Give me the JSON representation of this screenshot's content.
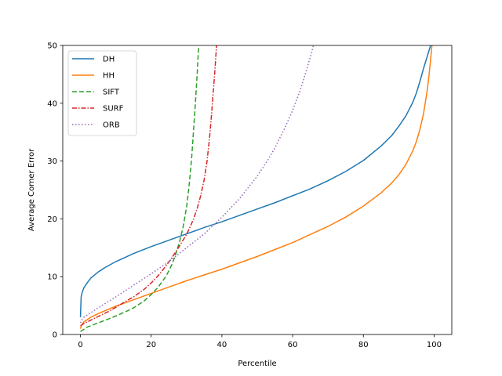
{
  "chart_data": {
    "type": "line",
    "title": "",
    "xlabel": "Percentile",
    "ylabel": "Average Corner Error",
    "xlim": [
      -5,
      105
    ],
    "ylim": [
      0,
      50
    ],
    "xticks": [
      0,
      20,
      40,
      60,
      80,
      100
    ],
    "yticks": [
      0,
      10,
      20,
      30,
      40,
      50
    ],
    "grid": false,
    "legend_position": "top-left",
    "series": [
      {
        "name": "DH",
        "color": "#1f77b4",
        "dash": "solid",
        "x": [
          0,
          0.2,
          0.5,
          1,
          2,
          3,
          5,
          7,
          10,
          15,
          20,
          25,
          30,
          35,
          40,
          45,
          50,
          55,
          60,
          65,
          70,
          75,
          80,
          85,
          88,
          90,
          92,
          94,
          95,
          96,
          97,
          98,
          98.5,
          99,
          99.3,
          99.6
        ],
        "y": [
          3,
          6.5,
          7.3,
          8.1,
          9.0,
          9.8,
          10.8,
          11.6,
          12.6,
          14.0,
          15.2,
          16.3,
          17.4,
          18.5,
          19.5,
          20.6,
          21.7,
          22.8,
          24.0,
          25.2,
          26.6,
          28.2,
          30.1,
          32.6,
          34.4,
          36.0,
          37.8,
          40.2,
          41.8,
          43.8,
          46.0,
          48.0,
          49.0,
          50.0,
          50.5,
          51.0
        ]
      },
      {
        "name": "HH",
        "color": "#ff7f0e",
        "dash": "solid",
        "x": [
          0,
          0.3,
          1,
          3,
          5,
          10,
          15,
          20,
          25,
          30,
          35,
          40,
          45,
          50,
          55,
          60,
          65,
          70,
          75,
          80,
          85,
          88,
          90,
          92,
          94,
          95,
          96,
          97,
          98,
          98.5,
          99,
          99.3,
          99.6
        ],
        "y": [
          1.0,
          1.6,
          2.2,
          3.0,
          3.6,
          4.9,
          6.0,
          7.1,
          8.2,
          9.3,
          10.3,
          11.3,
          12.4,
          13.5,
          14.7,
          15.9,
          17.3,
          18.7,
          20.3,
          22.2,
          24.5,
          26.2,
          27.6,
          29.4,
          31.8,
          33.4,
          35.5,
          38.2,
          42.0,
          44.5,
          47.5,
          49.5,
          51.0
        ]
      },
      {
        "name": "SIFT",
        "color": "#2ca02c",
        "dash": "6,3",
        "x": [
          0,
          2,
          5,
          8,
          10,
          13,
          15,
          18,
          20,
          22,
          24,
          25,
          26,
          27,
          28,
          29,
          30,
          30.5,
          31,
          31.5,
          32,
          32.5,
          33,
          33.3,
          33.6
        ],
        "y": [
          0.5,
          1.3,
          2.0,
          2.7,
          3.2,
          4.0,
          4.6,
          5.8,
          6.9,
          8.2,
          9.9,
          11.0,
          12.3,
          14.0,
          16.0,
          18.5,
          22.0,
          24.5,
          27.5,
          31.0,
          35.5,
          40.0,
          45.0,
          48.5,
          51.0
        ]
      },
      {
        "name": "SURF",
        "color": "#d62728",
        "dash": "6,2,1.5,2",
        "x": [
          0,
          0.5,
          1,
          3,
          5,
          8,
          10,
          13,
          15,
          18,
          20,
          22,
          24,
          26,
          28,
          30,
          31,
          32,
          33,
          34,
          35,
          35.8,
          36.5,
          37,
          37.5,
          38,
          38.3,
          38.6
        ],
        "y": [
          1.5,
          1.7,
          1.9,
          2.5,
          3.1,
          4.0,
          4.7,
          5.8,
          6.5,
          7.8,
          8.9,
          10.2,
          11.7,
          13.4,
          15.3,
          17.3,
          18.6,
          20.0,
          21.8,
          24.0,
          26.8,
          30.0,
          34.0,
          37.5,
          41.5,
          45.5,
          48.3,
          51.0
        ]
      },
      {
        "name": "ORB",
        "color": "#9467bd",
        "dash": "1.5,2.5",
        "x": [
          0,
          0.5,
          1,
          3,
          5,
          10,
          15,
          20,
          25,
          30,
          35,
          40,
          45,
          50,
          53,
          55,
          58,
          60,
          62,
          63,
          64,
          65,
          66,
          66.5,
          67
        ],
        "y": [
          2.0,
          2.6,
          3.0,
          3.8,
          4.6,
          6.5,
          8.5,
          10.5,
          12.6,
          15.0,
          17.4,
          20.3,
          23.5,
          27.4,
          30.2,
          32.3,
          36.0,
          38.8,
          42.0,
          43.9,
          45.9,
          48.0,
          50.3,
          51.5,
          52.5
        ]
      }
    ]
  }
}
